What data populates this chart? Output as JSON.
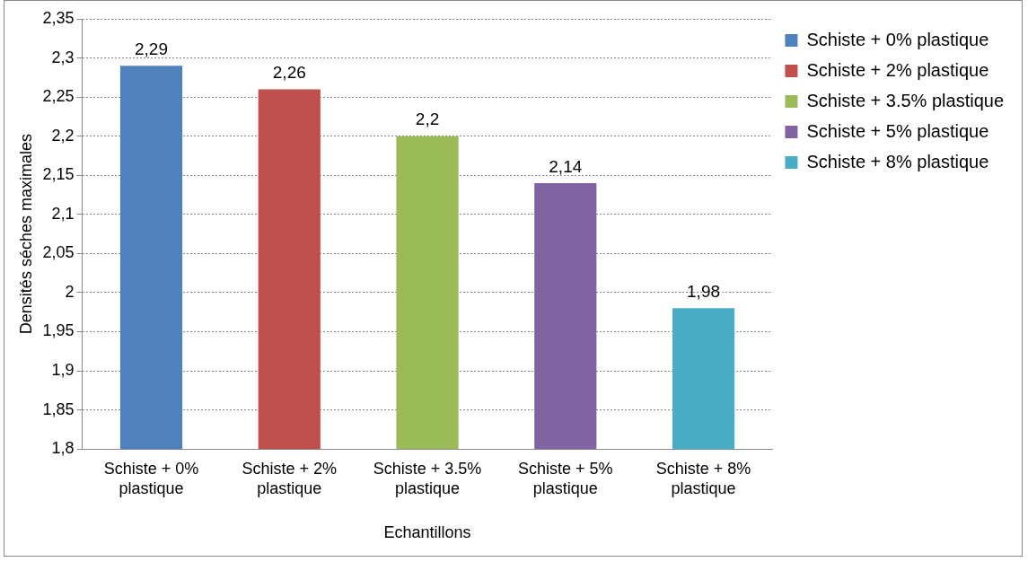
{
  "chart_data": {
    "type": "bar",
    "xlabel": "Echantillons",
    "ylabel": "Densités séches maximales",
    "categories": [
      "Schiste + 0% plastique",
      "Schiste + 2% plastique",
      "Schiste + 3.5% plastique",
      "Schiste + 5% plastique",
      "Schiste + 8% plastique"
    ],
    "series": [
      {
        "name": "Schiste + 0% plastique",
        "color": "#4f81bd",
        "values": [
          2.29,
          null,
          null,
          null,
          null
        ],
        "value_labels": [
          "2,29",
          null,
          null,
          null,
          null
        ]
      },
      {
        "name": "Schiste + 2% plastique",
        "color": "#c0504d",
        "values": [
          null,
          2.26,
          null,
          null,
          null
        ],
        "value_labels": [
          null,
          "2,26",
          null,
          null,
          null
        ]
      },
      {
        "name": "Schiste + 3.5% plastique",
        "color": "#9bbb59",
        "values": [
          null,
          null,
          2.2,
          null,
          null
        ],
        "value_labels": [
          null,
          null,
          "2,2",
          null,
          null
        ]
      },
      {
        "name": "Schiste + 5% plastique",
        "color": "#8064a2",
        "values": [
          null,
          null,
          null,
          2.14,
          null
        ],
        "value_labels": [
          null,
          null,
          null,
          "2,14",
          null
        ]
      },
      {
        "name": "Schiste + 8% plastique",
        "color": "#4bacc6",
        "values": [
          null,
          null,
          null,
          null,
          1.98
        ],
        "value_labels": [
          null,
          null,
          null,
          null,
          "1,98"
        ]
      }
    ],
    "ylim": [
      1.8,
      2.35
    ],
    "yticks": [
      {
        "value": 1.8,
        "label": "1,8"
      },
      {
        "value": 1.85,
        "label": "1,85"
      },
      {
        "value": 1.9,
        "label": "1,9"
      },
      {
        "value": 1.95,
        "label": "1,95"
      },
      {
        "value": 2,
        "label": "2"
      },
      {
        "value": 2.05,
        "label": "2,05"
      },
      {
        "value": 2.1,
        "label": "2,1"
      },
      {
        "value": 2.15,
        "label": "2,15"
      },
      {
        "value": 2.2,
        "label": "2,2"
      },
      {
        "value": 2.25,
        "label": "2,25"
      },
      {
        "value": 2.3,
        "label": "2,3"
      },
      {
        "value": 2.35,
        "label": "2,35"
      }
    ],
    "grid": "y",
    "legend": "right"
  }
}
